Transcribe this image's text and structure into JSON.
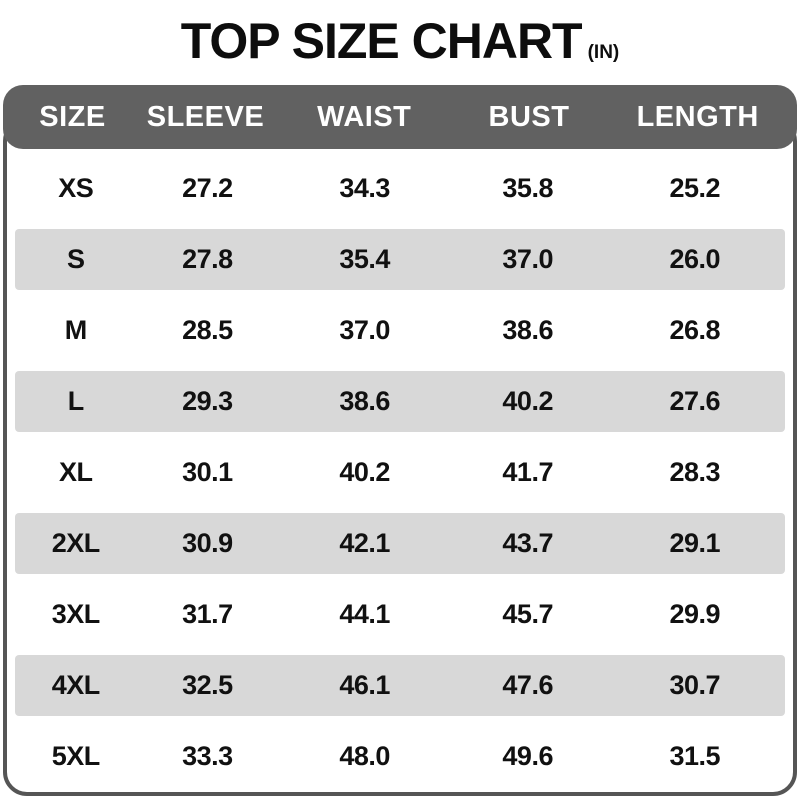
{
  "title": {
    "text": "TOP SIZE CHART",
    "unit": "(IN)"
  },
  "chart_data": {
    "type": "table",
    "title": "TOP SIZE CHART (IN)",
    "columns": [
      "SIZE",
      "SLEEVE",
      "WAIST",
      "BUST",
      "LENGTH"
    ],
    "rows": [
      {
        "striped": false,
        "cells": [
          "XS",
          "27.2",
          "34.3",
          "35.8",
          "25.2"
        ]
      },
      {
        "striped": true,
        "cells": [
          "S",
          "27.8",
          "35.4",
          "37.0",
          "26.0"
        ]
      },
      {
        "striped": false,
        "cells": [
          "M",
          "28.5",
          "37.0",
          "38.6",
          "26.8"
        ]
      },
      {
        "striped": true,
        "cells": [
          "L",
          "29.3",
          "38.6",
          "40.2",
          "27.6"
        ]
      },
      {
        "striped": false,
        "cells": [
          "XL",
          "30.1",
          "40.2",
          "41.7",
          "28.3"
        ]
      },
      {
        "striped": true,
        "cells": [
          "2XL",
          "30.9",
          "42.1",
          "43.7",
          "29.1"
        ]
      },
      {
        "striped": false,
        "cells": [
          "3XL",
          "31.7",
          "44.1",
          "45.7",
          "29.9"
        ]
      },
      {
        "striped": true,
        "cells": [
          "4XL",
          "32.5",
          "46.1",
          "47.6",
          "30.7"
        ]
      },
      {
        "striped": false,
        "cells": [
          "5XL",
          "33.3",
          "48.0",
          "49.6",
          "31.5"
        ]
      }
    ]
  },
  "colors": {
    "header_bg": "#616161",
    "header_text": "#ffffff",
    "stripe": "#d8d8d8",
    "border": "#555555",
    "text": "#111111",
    "background": "#ffffff"
  }
}
